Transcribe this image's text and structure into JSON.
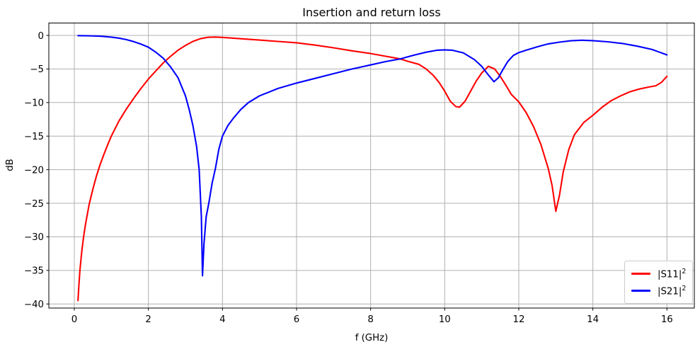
{
  "figure": {
    "title": "Insertion and return loss",
    "xlabel": "f (GHz)",
    "ylabel": "dB"
  },
  "legend": {
    "position": "lower right",
    "items": [
      {
        "base": "|S11|",
        "sup": "2",
        "color": "#ff0000"
      },
      {
        "base": "|S21|",
        "sup": "2",
        "color": "#0000ff"
      }
    ]
  },
  "chart_data": {
    "type": "line",
    "title": "Insertion and return loss",
    "xlabel": "f (GHz)",
    "ylabel": "dB",
    "xlim": [
      -0.688,
      16.74
    ],
    "ylim": [
      -40.61,
      1.846
    ],
    "grid": true,
    "grid_color": "#b0b0b0",
    "spine_color": "#000000",
    "legend_position": "lower right",
    "xticks": {
      "values": [
        0,
        2,
        4,
        6,
        8,
        10,
        12,
        14,
        16
      ],
      "labels": [
        "0",
        "2",
        "4",
        "6",
        "8",
        "10",
        "12",
        "14",
        "16"
      ]
    },
    "yticks": {
      "values": [
        0,
        -5,
        -10,
        -15,
        -20,
        -25,
        -30,
        -35,
        -40
      ],
      "labels": [
        "0",
        "−5",
        "−10",
        "−15",
        "−20",
        "−25",
        "−30",
        "−35",
        "−40"
      ]
    },
    "series": [
      {
        "id": "s11",
        "name": "|S11|²",
        "color": "#ff0000",
        "points": [
          [
            0.1,
            -39.5
          ],
          [
            0.12,
            -37.5
          ],
          [
            0.15,
            -35
          ],
          [
            0.2,
            -32.2
          ],
          [
            0.25,
            -30
          ],
          [
            0.3,
            -28.2
          ],
          [
            0.4,
            -25.2
          ],
          [
            0.5,
            -22.9
          ],
          [
            0.6,
            -20.9
          ],
          [
            0.7,
            -19.2
          ],
          [
            0.8,
            -17.7
          ],
          [
            0.9,
            -16.3
          ],
          [
            1.0,
            -15.0
          ],
          [
            1.2,
            -12.8
          ],
          [
            1.4,
            -11.0
          ],
          [
            1.6,
            -9.4
          ],
          [
            1.8,
            -7.9
          ],
          [
            2.0,
            -6.5
          ],
          [
            2.2,
            -5.3
          ],
          [
            2.4,
            -4.1
          ],
          [
            2.6,
            -3.1
          ],
          [
            2.8,
            -2.2
          ],
          [
            3.0,
            -1.5
          ],
          [
            3.2,
            -0.9
          ],
          [
            3.4,
            -0.5
          ],
          [
            3.6,
            -0.28
          ],
          [
            3.8,
            -0.24
          ],
          [
            4.0,
            -0.3
          ],
          [
            4.5,
            -0.5
          ],
          [
            5.0,
            -0.7
          ],
          [
            5.5,
            -0.9
          ],
          [
            6.0,
            -1.1
          ],
          [
            6.5,
            -1.45
          ],
          [
            7.0,
            -1.85
          ],
          [
            7.5,
            -2.3
          ],
          [
            8.0,
            -2.7
          ],
          [
            8.4,
            -3.1
          ],
          [
            8.8,
            -3.5
          ],
          [
            9.0,
            -3.85
          ],
          [
            9.3,
            -4.3
          ],
          [
            9.5,
            -5.0
          ],
          [
            9.7,
            -6.0
          ],
          [
            9.85,
            -7.0
          ],
          [
            10.0,
            -8.3
          ],
          [
            10.15,
            -9.8
          ],
          [
            10.3,
            -10.6
          ],
          [
            10.4,
            -10.7
          ],
          [
            10.55,
            -9.8
          ],
          [
            10.7,
            -8.3
          ],
          [
            10.85,
            -6.8
          ],
          [
            11.0,
            -5.6
          ],
          [
            11.18,
            -4.6
          ],
          [
            11.35,
            -5.0
          ],
          [
            11.5,
            -6.1
          ],
          [
            11.65,
            -7.4
          ],
          [
            11.8,
            -8.8
          ],
          [
            12.0,
            -9.9
          ],
          [
            12.2,
            -11.5
          ],
          [
            12.4,
            -13.6
          ],
          [
            12.6,
            -16.3
          ],
          [
            12.8,
            -19.9
          ],
          [
            12.9,
            -22.4
          ],
          [
            13.0,
            -26.2
          ],
          [
            13.1,
            -23.8
          ],
          [
            13.2,
            -20.3
          ],
          [
            13.35,
            -17.0
          ],
          [
            13.5,
            -14.8
          ],
          [
            13.75,
            -13.0
          ],
          [
            14.0,
            -11.9
          ],
          [
            14.25,
            -10.7
          ],
          [
            14.5,
            -9.7
          ],
          [
            14.75,
            -9.0
          ],
          [
            15.0,
            -8.4
          ],
          [
            15.25,
            -8.0
          ],
          [
            15.5,
            -7.7
          ],
          [
            15.7,
            -7.5
          ],
          [
            15.85,
            -7.0
          ],
          [
            16.0,
            -6.1
          ]
        ]
      },
      {
        "id": "s21",
        "name": "|S21|²",
        "color": "#0000ff",
        "points": [
          [
            0.1,
            -0.03
          ],
          [
            0.4,
            -0.06
          ],
          [
            0.7,
            -0.12
          ],
          [
            1.0,
            -0.25
          ],
          [
            1.2,
            -0.4
          ],
          [
            1.4,
            -0.62
          ],
          [
            1.6,
            -0.92
          ],
          [
            1.8,
            -1.3
          ],
          [
            2.0,
            -1.75
          ],
          [
            2.2,
            -2.5
          ],
          [
            2.4,
            -3.4
          ],
          [
            2.6,
            -4.7
          ],
          [
            2.8,
            -6.3
          ],
          [
            3.0,
            -9.0
          ],
          [
            3.1,
            -11.0
          ],
          [
            3.2,
            -13.4
          ],
          [
            3.3,
            -16.5
          ],
          [
            3.37,
            -20
          ],
          [
            3.43,
            -27
          ],
          [
            3.46,
            -35.8
          ],
          [
            3.5,
            -31
          ],
          [
            3.56,
            -27
          ],
          [
            3.63,
            -25
          ],
          [
            3.72,
            -22
          ],
          [
            3.81,
            -19.8
          ],
          [
            3.9,
            -17.0
          ],
          [
            4.0,
            -15.0
          ],
          [
            4.15,
            -13.4
          ],
          [
            4.3,
            -12.3
          ],
          [
            4.5,
            -11.0
          ],
          [
            4.7,
            -10.0
          ],
          [
            5.0,
            -9.0
          ],
          [
            5.5,
            -7.9
          ],
          [
            6.0,
            -7.1
          ],
          [
            6.5,
            -6.4
          ],
          [
            7.0,
            -5.7
          ],
          [
            7.5,
            -5.0
          ],
          [
            8.0,
            -4.4
          ],
          [
            8.4,
            -3.9
          ],
          [
            8.8,
            -3.5
          ],
          [
            9.0,
            -3.2
          ],
          [
            9.2,
            -2.9
          ],
          [
            9.5,
            -2.5
          ],
          [
            9.8,
            -2.2
          ],
          [
            10.0,
            -2.15
          ],
          [
            10.2,
            -2.2
          ],
          [
            10.5,
            -2.6
          ],
          [
            10.8,
            -3.6
          ],
          [
            11.0,
            -4.6
          ],
          [
            11.15,
            -5.7
          ],
          [
            11.33,
            -6.9
          ],
          [
            11.45,
            -6.3
          ],
          [
            11.55,
            -5.3
          ],
          [
            11.7,
            -3.9
          ],
          [
            11.85,
            -3.0
          ],
          [
            12.0,
            -2.55
          ],
          [
            12.2,
            -2.2
          ],
          [
            12.5,
            -1.7
          ],
          [
            12.8,
            -1.25
          ],
          [
            13.1,
            -1.0
          ],
          [
            13.4,
            -0.8
          ],
          [
            13.7,
            -0.72
          ],
          [
            14.0,
            -0.78
          ],
          [
            14.4,
            -0.95
          ],
          [
            14.8,
            -1.2
          ],
          [
            15.2,
            -1.6
          ],
          [
            15.6,
            -2.1
          ],
          [
            15.8,
            -2.5
          ],
          [
            16.0,
            -2.9
          ]
        ]
      }
    ]
  }
}
